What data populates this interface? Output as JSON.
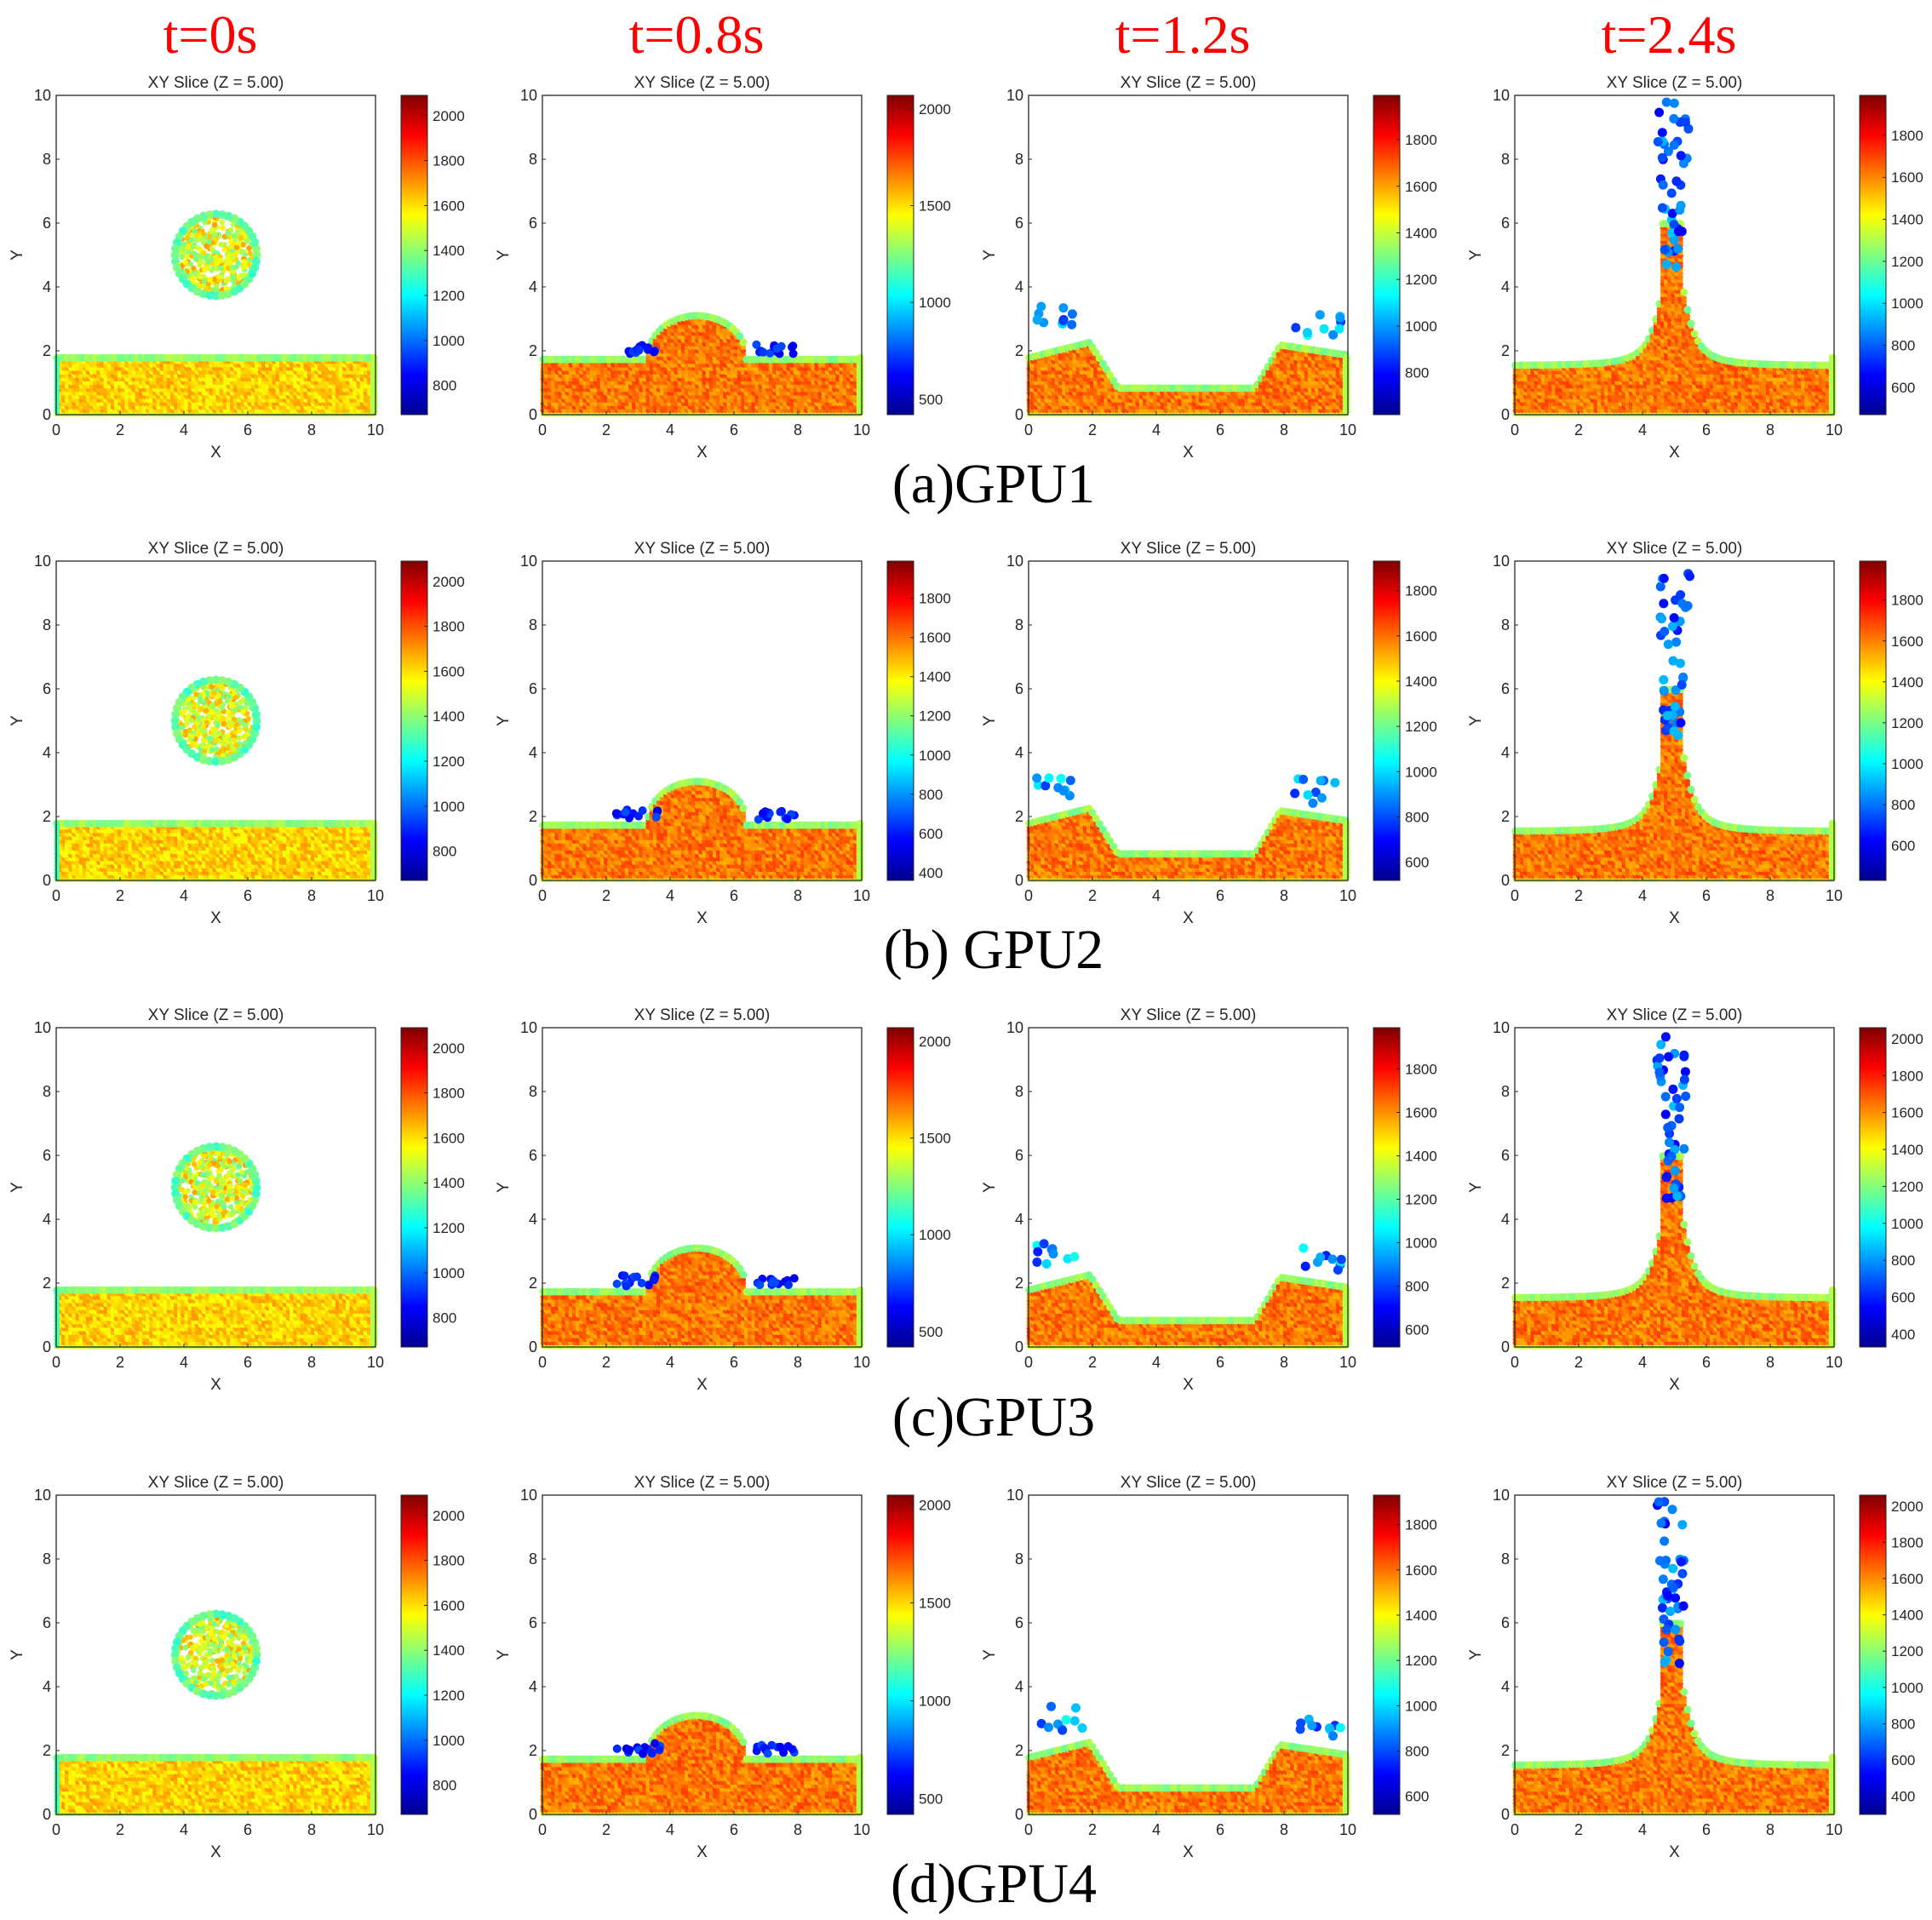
{
  "column_titles": [
    "t=0s",
    "t=0.8s",
    "t=1.2s",
    "t=2.4s"
  ],
  "row_labels": [
    "(a)GPU1",
    "(b) GPU2",
    "(c)GPU3",
    "(d)GPU4"
  ],
  "colors": {
    "title_red": "#ff0000",
    "axis": "#262626"
  },
  "chart_data": {
    "type": "scatter",
    "description_kind": "4x4 grid of XY particle slices colored by density",
    "panel_title": "XY Slice (Z = 5.00)",
    "xlabel": "X",
    "ylabel": "Y",
    "xlim": [
      0,
      10
    ],
    "ylim": [
      0,
      10
    ],
    "xticks": [
      0,
      2,
      4,
      6,
      8,
      10
    ],
    "yticks": [
      0,
      2,
      4,
      6,
      8,
      10
    ],
    "colormap": "jet",
    "rows": [
      {
        "label": "(a)GPU1",
        "panels": [
          {
            "time": "t=0s",
            "state": "drop",
            "clim": [
              670,
              2090
            ],
            "cticks": [
              800,
              1000,
              1200,
              1400,
              1600,
              1800,
              2000
            ]
          },
          {
            "time": "t=0.8s",
            "state": "impact",
            "clim": [
              420,
              2070
            ],
            "cticks": [
              500,
              1000,
              1500,
              2000
            ]
          },
          {
            "time": "t=1.2s",
            "state": "crater",
            "clim": [
              620,
              1990
            ],
            "cticks": [
              800,
              1000,
              1200,
              1400,
              1600,
              1800
            ]
          },
          {
            "time": "t=2.4s",
            "state": "jet",
            "clim": [
              470,
              1990
            ],
            "cticks": [
              600,
              800,
              1000,
              1200,
              1400,
              1600,
              1800
            ]
          }
        ]
      },
      {
        "label": "(b) GPU2",
        "panels": [
          {
            "time": "t=0s",
            "state": "drop",
            "clim": [
              670,
              2090
            ],
            "cticks": [
              800,
              1000,
              1200,
              1400,
              1600,
              1800,
              2000
            ]
          },
          {
            "time": "t=0.8s",
            "state": "impact",
            "clim": [
              360,
              1990
            ],
            "cticks": [
              400,
              600,
              800,
              1000,
              1200,
              1400,
              1600,
              1800
            ]
          },
          {
            "time": "t=1.2s",
            "state": "crater",
            "clim": [
              520,
              1930
            ],
            "cticks": [
              600,
              800,
              1000,
              1200,
              1400,
              1600,
              1800
            ]
          },
          {
            "time": "t=2.4s",
            "state": "jet",
            "clim": [
              430,
              1990
            ],
            "cticks": [
              600,
              800,
              1000,
              1200,
              1400,
              1600,
              1800
            ]
          }
        ]
      },
      {
        "label": "(c)GPU3",
        "panels": [
          {
            "time": "t=0s",
            "state": "drop",
            "clim": [
              670,
              2090
            ],
            "cticks": [
              800,
              1000,
              1200,
              1400,
              1600,
              1800,
              2000
            ]
          },
          {
            "time": "t=0.8s",
            "state": "impact",
            "clim": [
              420,
              2070
            ],
            "cticks": [
              500,
              1000,
              1500,
              2000
            ]
          },
          {
            "time": "t=1.2s",
            "state": "crater",
            "clim": [
              520,
              1990
            ],
            "cticks": [
              600,
              800,
              1000,
              1200,
              1400,
              1600,
              1800
            ]
          },
          {
            "time": "t=2.4s",
            "state": "jet",
            "clim": [
              330,
              2060
            ],
            "cticks": [
              400,
              600,
              800,
              1000,
              1200,
              1400,
              1600,
              1800,
              2000
            ]
          }
        ]
      },
      {
        "label": "(d)GPU4",
        "panels": [
          {
            "time": "t=0s",
            "state": "drop",
            "clim": [
              670,
              2090
            ],
            "cticks": [
              800,
              1000,
              1200,
              1400,
              1600,
              1800,
              2000
            ]
          },
          {
            "time": "t=0.8s",
            "state": "impact",
            "clim": [
              420,
              2050
            ],
            "cticks": [
              500,
              1000,
              1500,
              2000
            ]
          },
          {
            "time": "t=1.2s",
            "state": "crater",
            "clim": [
              520,
              1930
            ],
            "cticks": [
              600,
              800,
              1000,
              1200,
              1400,
              1600,
              1800
            ]
          },
          {
            "time": "t=2.4s",
            "state": "jet",
            "clim": [
              300,
              2060
            ],
            "cticks": [
              400,
              600,
              800,
              1000,
              1200,
              1400,
              1600,
              1800,
              2000
            ]
          }
        ]
      }
    ]
  }
}
